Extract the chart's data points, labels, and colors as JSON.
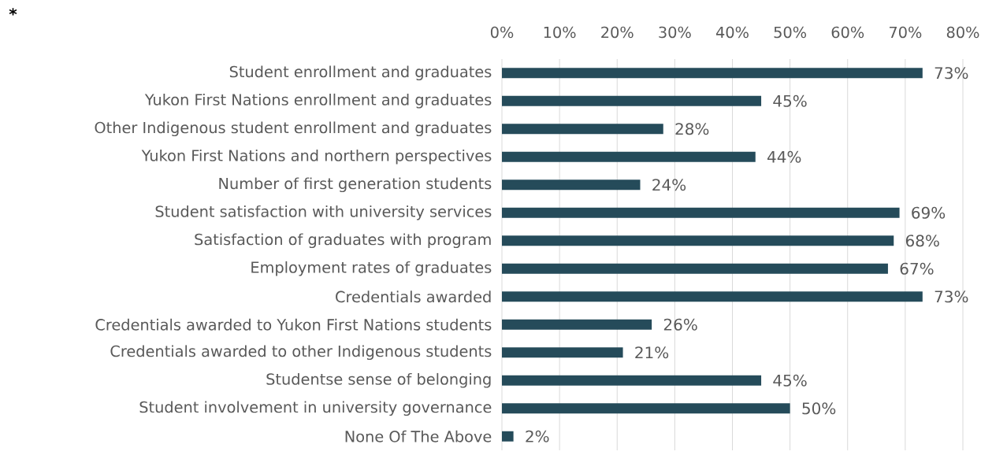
{
  "chart_data": {
    "type": "bar",
    "orientation": "horizontal",
    "categories": [
      "Student enrollment and graduates",
      "Yukon First Nations enrollment and graduates",
      "Other Indigenous student enrollment  and graduates",
      "Yukon First Nations and northern perspectives",
      "Number of first generation students",
      "Student satisfaction with university services",
      "Satisfaction of graduates with program",
      "Employment rates of graduates",
      "Credentials awarded",
      "Credentials awarded to Yukon First Nations students",
      "Credentials awarded to other Indigenous students",
      "Studentse sense of belonging",
      "Student involvement in university governance",
      "None Of The Above"
    ],
    "values": [
      73,
      45,
      28,
      44,
      24,
      69,
      68,
      67,
      73,
      26,
      21,
      45,
      50,
      2
    ],
    "value_labels": [
      "73%",
      "45%",
      "28%",
      "44%",
      "24%",
      "69%",
      "68%",
      "67%",
      "73%",
      "26%",
      "21%",
      "45%",
      "50%",
      "2%"
    ],
    "color": "#254b5a",
    "xlim": [
      0,
      80
    ],
    "xticks": [
      {
        "value": 0,
        "label": "0%"
      },
      {
        "value": 10,
        "label": "10%"
      },
      {
        "value": 20,
        "label": "20%"
      },
      {
        "value": 30,
        "label": "30%"
      },
      {
        "value": 40,
        "label": "40%"
      },
      {
        "value": 50,
        "label": "50%"
      },
      {
        "value": 60,
        "label": "60%"
      },
      {
        "value": 70,
        "label": "70%"
      },
      {
        "value": 80,
        "label": "80%"
      }
    ],
    "grid": "x",
    "annotations": [
      "*"
    ]
  }
}
